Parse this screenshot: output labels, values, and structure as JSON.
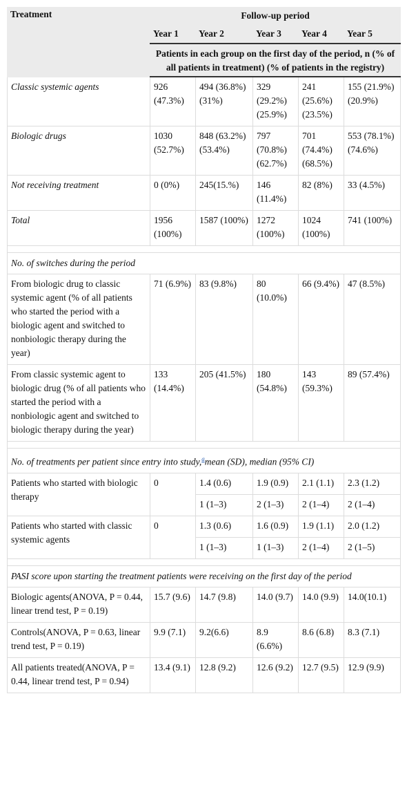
{
  "table": {
    "header": {
      "treatment": "Treatment",
      "period": "Follow-up period",
      "years": [
        "Year 1",
        "Year 2",
        "Year 3",
        "Year 4",
        "Year 5"
      ],
      "subheader": "Patients in each group on the first day of the period, n (% of all patients in treatment) (% of patients in the registry)"
    },
    "groups": [
      {
        "rows": [
          {
            "label": "Classic systemic agents",
            "cells": [
              "926 (47.3%)",
              "494 (36.8%) (31%)",
              "329 (29.2%) (25.9%)",
              "241 (25.6%) (23.5%)",
              "155 (21.9%) (20.9%)"
            ]
          },
          {
            "label": "Biologic drugs",
            "cells": [
              "1030 (52.7%)",
              "848 (63.2%) (53.4%)",
              "797 (70.8%) (62.7%)",
              "701 (74.4%) (68.5%)",
              "553 (78.1%) (74.6%)"
            ]
          },
          {
            "label": "Not receiving treatment",
            "cells": [
              "0 (0%)",
              "245(15.%)",
              "146 (11.4%)",
              "82 (8%)",
              "33 (4.5%)"
            ]
          },
          {
            "label": "Total",
            "cells": [
              "1956 (100%)",
              "1587 (100%)",
              "1272 (100%)",
              "1024 (100%)",
              "741 (100%)"
            ]
          }
        ]
      },
      {
        "title": "No. of switches during the period",
        "rows": [
          {
            "label": "From biologic drug to classic systemic agent (% of all patients who started the period with a biologic agent and switched to nonbiologic therapy during the year)",
            "cells": [
              "71 (6.9%)",
              "83 (9.8%)",
              "80 (10.0%)",
              "66 (9.4%)",
              "47 (8.5%)"
            ]
          },
          {
            "label": "From classic systemic agent to biologic drug (% of all patients who started the period with a nonbiologic agent and switched to biologic therapy during the year)",
            "cells": [
              "133 (14.4%)",
              "205 (41.5%)",
              "180 (54.8%)",
              "143 (59.3%)",
              "89 (57.4%)"
            ]
          }
        ]
      },
      {
        "title": "No. of treatments per patient since entry into study,",
        "footnote": "a",
        "title_end": "mean (SD), median (95% CI)",
        "rows": [
          {
            "label": "Patients who started with biologic therapy",
            "cells": [
              "0",
              "1.4 (0.6)",
              "1.9 (0.9)",
              "2.1 (1.1)",
              "2.3 (1.2)"
            ],
            "medians": [
              "1 (1–3)",
              "2 (1–3)",
              "2 (1–4)",
              "2 (1–4)"
            ]
          },
          {
            "label": "Patients who started with classic systemic agents",
            "cells": [
              "0",
              "1.3 (0.6)",
              "1.6 (0.9)",
              "1.9 (1.1)",
              "2.0 (1.2)"
            ],
            "medians": [
              "1 (1–3)",
              "1 (1–3)",
              "2 (1–4)",
              "2 (1–5)"
            ]
          }
        ]
      },
      {
        "title": "PASI score upon starting the treatment patients were receiving on the first day of the period",
        "rows": [
          {
            "label": "Biologic agents(ANOVA, P = 0.44, linear trend test, P = 0.19)",
            "cells": [
              "15.7 (9.6)",
              "14.7 (9.8)",
              "14.0 (9.7)",
              "14.0 (9.9)",
              "14.0(10.1)"
            ]
          },
          {
            "label": "Controls(ANOVA, P = 0.63, linear trend test, P = 0.19)",
            "cells": [
              "9.9 (7.1)",
              "9.2(6.6)",
              "8.9 (6.6%)",
              "8.6 (6.8)",
              "8.3 (7.1)"
            ]
          },
          {
            "label": "All patients treated(ANOVA, P = 0.44, linear trend test, P = 0.94)",
            "cells": [
              "13.4 (9.1)",
              "12.8 (9.2)",
              "12.6 (9.2)",
              "12.7 (9.5)",
              "12.9 (9.9)"
            ]
          }
        ]
      }
    ]
  }
}
